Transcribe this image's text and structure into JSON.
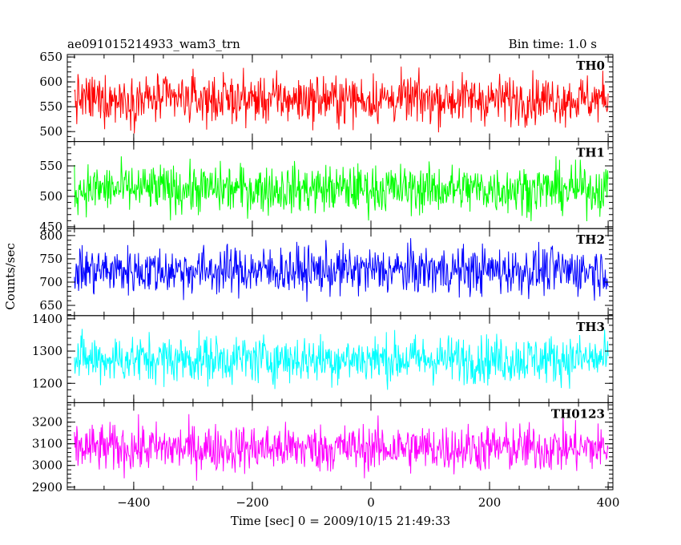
{
  "chart_data": {
    "type": "line",
    "title_left": "ae091015214933_wam3_trn",
    "title_right": "Bin time: 1.0 s",
    "xlabel": "Time [sec] 0 = 2009/10/15 21:49:33",
    "ylabel": "Counts/sec",
    "xlim": [
      -512,
      408
    ],
    "x_ticks": [
      -400,
      -200,
      0,
      200,
      400
    ],
    "x_tick_labels": [
      "−400",
      "−200",
      "0",
      "200",
      "400"
    ],
    "x_range": [
      -500,
      400
    ],
    "bin_time": 1.0,
    "panels": [
      {
        "name": "TH0",
        "color": "#ff0000",
        "mean": 565,
        "ylim": [
          480,
          655
        ],
        "y_ticks": [
          500,
          550,
          600,
          650
        ],
        "y_tick_labels": [
          "500",
          "550",
          "600",
          "650"
        ]
      },
      {
        "name": "TH1",
        "color": "#00ff00",
        "mean": 512,
        "ylim": [
          447,
          590
        ],
        "y_ticks": [
          450,
          500,
          550
        ],
        "y_tick_labels": [
          "450",
          "500",
          "550"
        ]
      },
      {
        "name": "TH2",
        "color": "#0000ff",
        "mean": 725,
        "ylim": [
          628,
          815
        ],
        "y_ticks": [
          650,
          700,
          750,
          800
        ],
        "y_tick_labels": [
          "650",
          "700",
          "750",
          "800"
        ]
      },
      {
        "name": "TH3",
        "color": "#00ffff",
        "mean": 1275,
        "ylim": [
          1140,
          1410
        ],
        "y_ticks": [
          1200,
          1300,
          1400
        ],
        "y_tick_labels": [
          "1200",
          "1300",
          "1400"
        ]
      },
      {
        "name": "TH0123",
        "color": "#ff00ff",
        "mean": 3080,
        "ylim": [
          2888,
          3290
        ],
        "y_ticks": [
          2900,
          3000,
          3100,
          3200
        ],
        "y_tick_labels": [
          "2900",
          "3000",
          "3100",
          "3200"
        ]
      }
    ],
    "grid": false,
    "legend": "none"
  }
}
